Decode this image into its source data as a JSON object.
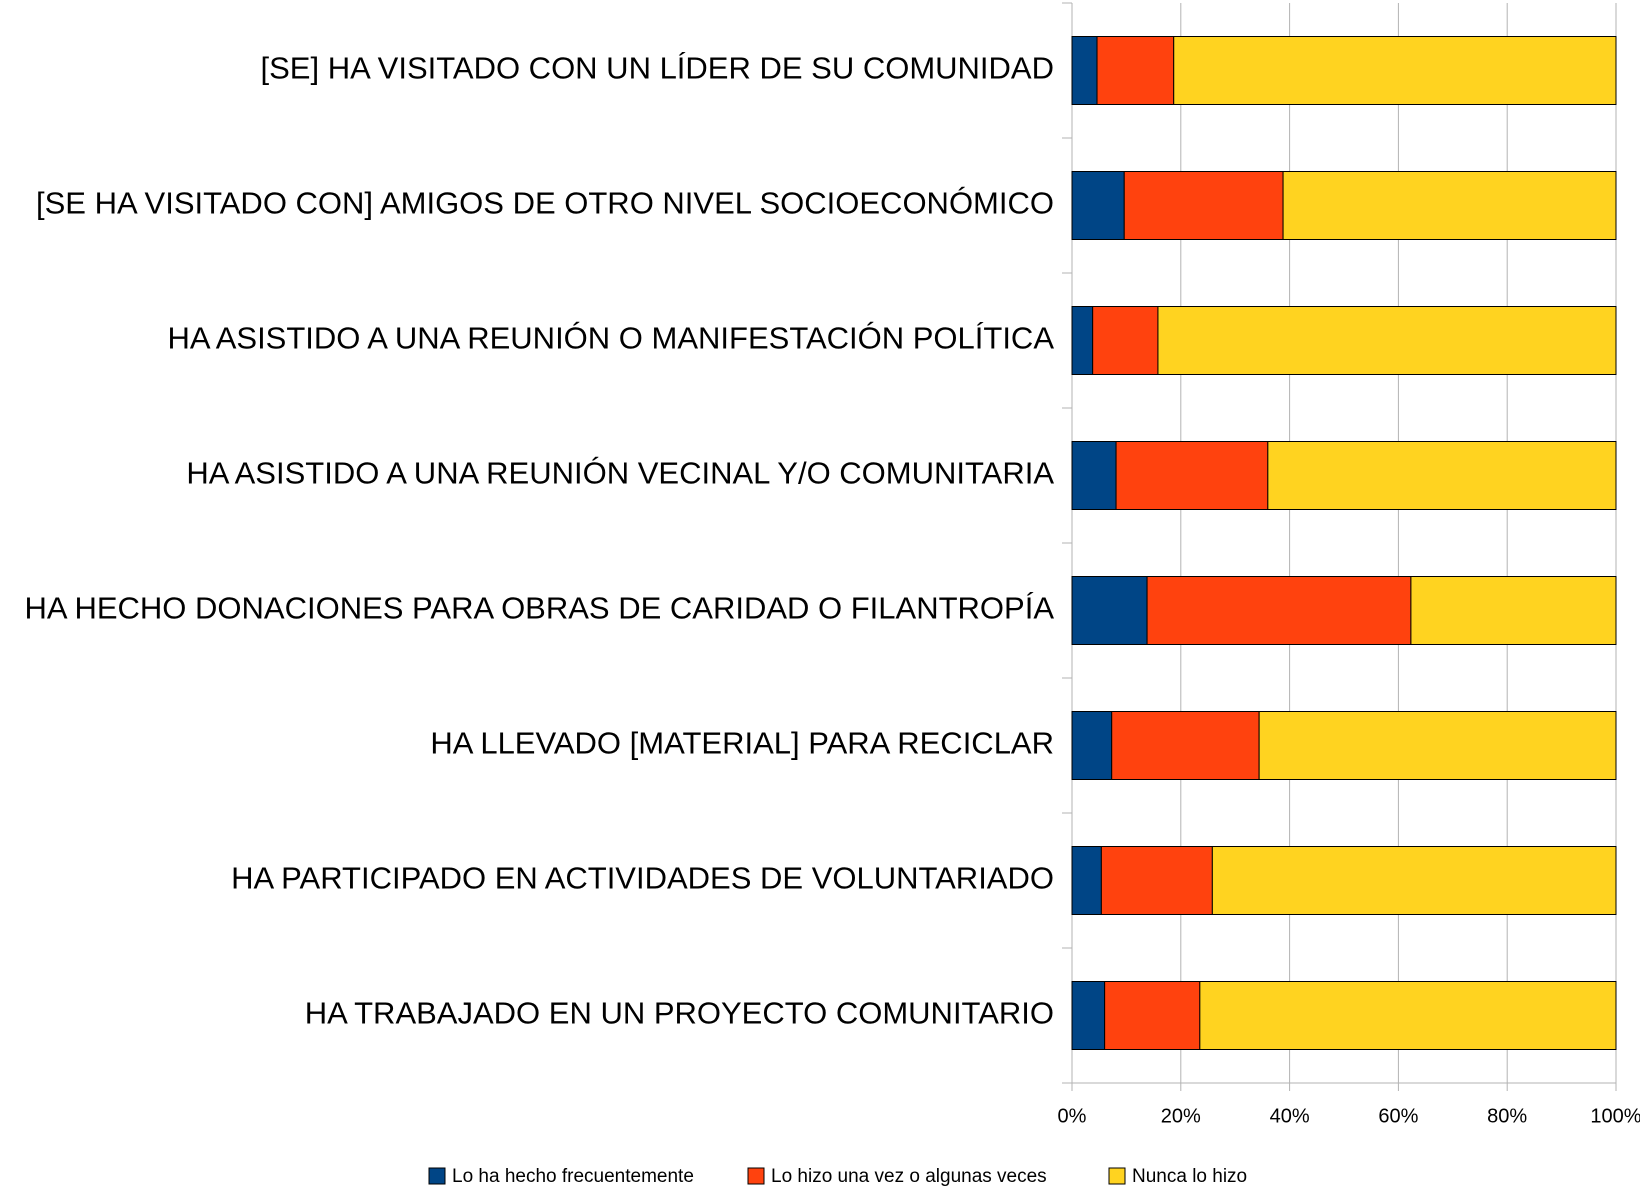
{
  "chart_data": {
    "type": "stacked-bar-horizontal",
    "categories": [
      "[SE] HA VISITADO CON UN LÍDER DE SU COMUNIDAD",
      "[SE HA VISITADO CON] AMIGOS DE OTRO NIVEL SOCIOECONÓMICO",
      "HA ASISTIDO A UNA REUNIÓN O MANIFESTACIÓN POLÍTICA",
      "HA ASISTIDO A UNA REUNIÓN VECINAL Y/O COMUNITARIA",
      "HA HECHO DONACIONES PARA OBRAS DE CARIDAD O FILANTROPÍA",
      "HA LLEVADO [MATERIAL] PARA RECICLAR",
      "HA PARTICIPADO EN ACTIVIDADES DE VOLUNTARIADO",
      "HA TRABAJADO EN UN PROYECTO COMUNITARIO"
    ],
    "series": [
      {
        "name": "Lo ha hecho frecuentemente",
        "color": "#004586",
        "values": [
          4.6,
          9.6,
          3.8,
          8.1,
          13.8,
          7.3,
          5.4,
          6.0
        ]
      },
      {
        "name": "Lo hizo una vez o algunas veces",
        "color": "#ff420e",
        "values": [
          14.1,
          29.2,
          12.0,
          27.9,
          48.5,
          27.1,
          20.4,
          17.5
        ]
      },
      {
        "name": "Nunca lo hizo",
        "color": "#ffd320",
        "values": [
          81.3,
          61.2,
          84.2,
          64.0,
          37.7,
          65.6,
          74.2,
          76.5
        ]
      }
    ],
    "xlim": [
      0,
      100
    ],
    "xticks": [
      {
        "value": 0,
        "label": "0%"
      },
      {
        "value": 20,
        "label": "20%"
      },
      {
        "value": 40,
        "label": "40%"
      },
      {
        "value": 60,
        "label": "60%"
      },
      {
        "value": 80,
        "label": "80%"
      },
      {
        "value": 100,
        "label": "100%"
      }
    ],
    "grid": true,
    "legend": "bottom"
  }
}
